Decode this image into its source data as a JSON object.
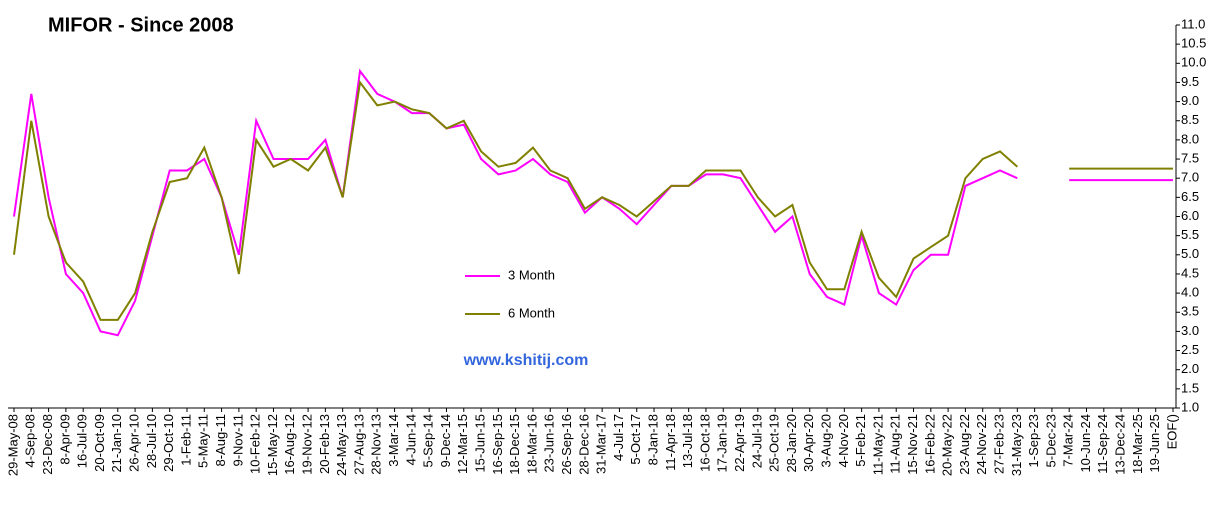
{
  "chart_data": {
    "type": "line",
    "title": "MIFOR - Since 2008",
    "categories": [
      "29-May-08",
      "4-Sep-08",
      "23-Dec-08",
      "8-Apr-09",
      "16-Jul-09",
      "20-Oct-09",
      "21-Jan-10",
      "26-Apr-10",
      "28-Jul-10",
      "29-Oct-10",
      "1-Feb-11",
      "5-May-11",
      "8-Aug-11",
      "9-Nov-11",
      "10-Feb-12",
      "15-May-12",
      "16-Aug-12",
      "19-Nov-12",
      "20-Feb-13",
      "24-May-13",
      "27-Aug-13",
      "28-Nov-13",
      "3-Mar-14",
      "4-Jun-14",
      "5-Sep-14",
      "9-Dec-14",
      "12-Mar-15",
      "15-Jun-15",
      "16-Sep-15",
      "18-Dec-15",
      "18-Mar-16",
      "23-Jun-16",
      "26-Sep-16",
      "28-Dec-16",
      "31-Mar-17",
      "4-Jul-17",
      "5-Oct-17",
      "8-Jan-18",
      "11-Apr-18",
      "13-Jul-18",
      "16-Oct-18",
      "17-Jan-19",
      "22-Apr-19",
      "24-Jul-19",
      "25-Oct-19",
      "28-Jan-20",
      "30-Apr-20",
      "3-Aug-20",
      "4-Nov-20",
      "5-Feb-21",
      "11-May-21",
      "11-Aug-21",
      "15-Nov-21",
      "16-Feb-22",
      "20-May-22",
      "23-Aug-22",
      "24-Nov-22",
      "27-Feb-23",
      "31-May-23",
      "1-Sep-23",
      "5-Dec-23",
      "7-Mar-24",
      "10-Jun-24",
      "11-Sep-24",
      "13-Dec-24",
      "18-Mar-25",
      "19-Jun-25",
      "EOF()"
    ],
    "series": [
      {
        "name": "3 Month",
        "color": "#ff00ff",
        "values": [
          6.0,
          9.2,
          6.5,
          4.5,
          4.0,
          3.0,
          2.9,
          3.8,
          5.5,
          7.2,
          7.2,
          7.5,
          6.5,
          5.0,
          8.5,
          7.5,
          7.5,
          7.5,
          8.0,
          6.5,
          9.8,
          9.2,
          9.0,
          8.7,
          8.7,
          8.3,
          8.4,
          7.5,
          7.1,
          7.2,
          7.5,
          7.1,
          6.9,
          6.1,
          6.5,
          6.2,
          5.8,
          6.3,
          6.8,
          6.8,
          7.1,
          7.1,
          7.0,
          6.3,
          5.6,
          6.0,
          4.5,
          3.9,
          3.7,
          5.5,
          4.0,
          3.7,
          4.6,
          5.0,
          5.0,
          6.8,
          7.0,
          7.2,
          7.0,
          null,
          null,
          6.95,
          6.95,
          6.95,
          6.95,
          6.95,
          6.95,
          6.95
        ]
      },
      {
        "name": "6 Month",
        "color": "#808000",
        "values": [
          5.0,
          8.5,
          6.0,
          4.8,
          4.3,
          3.3,
          3.3,
          4.0,
          5.6,
          6.9,
          7.0,
          7.8,
          6.5,
          4.5,
          8.0,
          7.3,
          7.5,
          7.2,
          7.8,
          6.5,
          9.5,
          8.9,
          9.0,
          8.8,
          8.7,
          8.3,
          8.5,
          7.7,
          7.3,
          7.4,
          7.8,
          7.2,
          7.0,
          6.2,
          6.5,
          6.3,
          6.0,
          6.4,
          6.8,
          6.8,
          7.2,
          7.2,
          7.2,
          6.5,
          6.0,
          6.3,
          4.8,
          4.1,
          4.1,
          5.6,
          4.4,
          3.9,
          4.9,
          5.2,
          5.5,
          7.0,
          7.5,
          7.7,
          7.3,
          null,
          null,
          7.25,
          7.25,
          7.25,
          7.25,
          7.25,
          7.25,
          7.25
        ]
      }
    ],
    "ylim": [
      1.0,
      11.0
    ],
    "yticks": [
      {
        "value": 1.0,
        "label": "1.0"
      },
      1.5,
      {
        "value": 2.0,
        "label": "2.0"
      },
      2.5,
      {
        "value": 3.0,
        "label": "3.0"
      },
      3.5,
      {
        "value": 4.0,
        "label": "4.0"
      },
      4.5,
      {
        "value": 5.0,
        "label": "5.0"
      },
      5.5,
      {
        "value": 6.0,
        "label": "6.0"
      },
      6.5,
      {
        "value": 7.0,
        "label": "7.0"
      },
      7.5,
      {
        "value": 8.0,
        "label": "8.0"
      },
      8.5,
      {
        "value": 9.0,
        "label": "9.0"
      },
      9.5,
      {
        "value": 10.0,
        "label": "10.0"
      },
      10.5,
      {
        "value": 11.0,
        "label": "11.0"
      }
    ],
    "annotation": "www.kshitij.com"
  }
}
